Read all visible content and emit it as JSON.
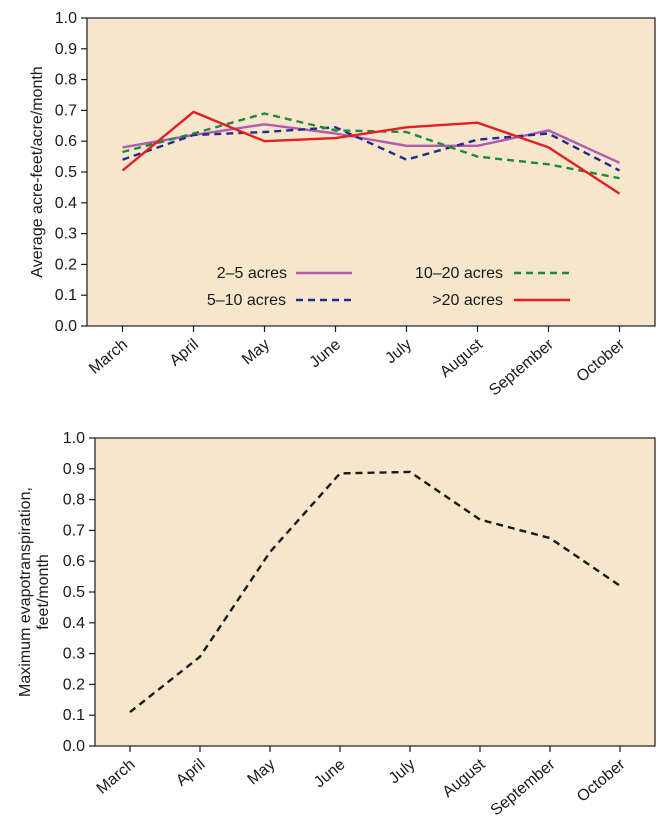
{
  "chart_data": [
    {
      "type": "line",
      "title": "",
      "xlabel": "",
      "ylabel": "Average acre-feet/acre/month",
      "ylim": [
        0,
        1.0
      ],
      "yticks": [
        "0.0",
        "0.1",
        "0.2",
        "0.3",
        "0.4",
        "0.5",
        "0.6",
        "0.7",
        "0.8",
        "0.9",
        "1.0"
      ],
      "categories": [
        "March",
        "April",
        "May",
        "June",
        "July",
        "August",
        "September",
        "October"
      ],
      "legend_position": "lower-center",
      "background": "#f5e6cc",
      "series": [
        {
          "name": "2–5 acres",
          "color": "#b05cb0",
          "style": "solid",
          "values": [
            0.58,
            0.62,
            0.655,
            0.625,
            0.585,
            0.585,
            0.635,
            0.53
          ]
        },
        {
          "name": "5–10 acres",
          "color": "#1f2d8f",
          "style": "dashed",
          "values": [
            0.54,
            0.62,
            0.63,
            0.645,
            0.54,
            0.605,
            0.625,
            0.505
          ]
        },
        {
          "name": "10–20 acres",
          "color": "#1e8a3a",
          "style": "dashed",
          "values": [
            0.565,
            0.625,
            0.69,
            0.635,
            0.63,
            0.55,
            0.525,
            0.48
          ]
        },
        {
          "name": ">20 acres",
          "color": "#e31e24",
          "style": "solid",
          "values": [
            0.505,
            0.695,
            0.6,
            0.61,
            0.645,
            0.66,
            0.58,
            0.43
          ]
        }
      ]
    },
    {
      "type": "line",
      "title": "",
      "xlabel": "",
      "ylabel": "Maximum evapotranspiration, feet/month",
      "ylabel_lines": [
        "Maximum evapotranspiration,",
        "feet/month"
      ],
      "ylim": [
        0,
        1.0
      ],
      "yticks": [
        "0.0",
        "0.1",
        "0.2",
        "0.3",
        "0.4",
        "0.5",
        "0.6",
        "0.7",
        "0.8",
        "0.9",
        "1.0"
      ],
      "categories": [
        "March",
        "April",
        "May",
        "June",
        "July",
        "August",
        "September",
        "October"
      ],
      "background": "#f5e6cc",
      "series": [
        {
          "color": "#1a1a1a",
          "style": "dashed",
          "values": [
            0.11,
            0.29,
            0.63,
            0.885,
            0.89,
            0.735,
            0.675,
            0.52
          ]
        }
      ]
    }
  ]
}
